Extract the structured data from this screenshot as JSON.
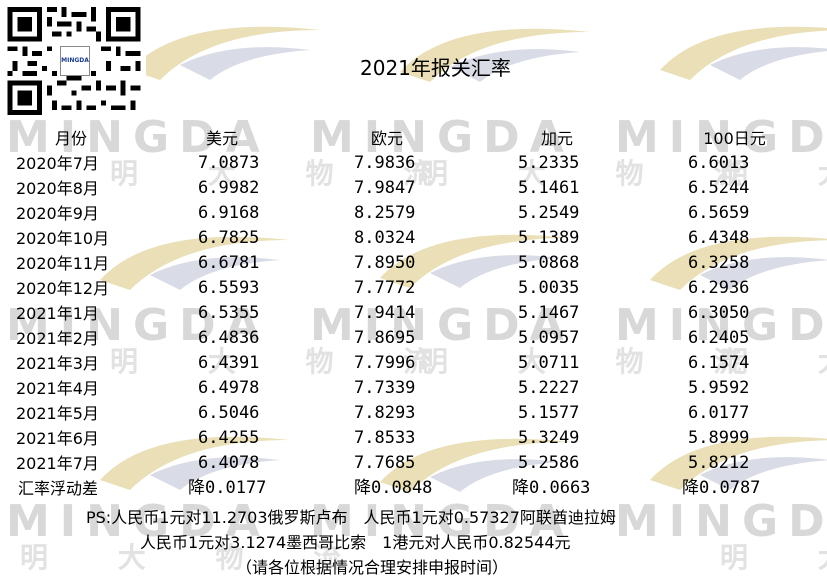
{
  "title": "2021年报关汇率",
  "watermark": {
    "word": "MINGDA",
    "cn": "明 大 物 流",
    "logo_color": "#e8d9a6"
  },
  "qr": {
    "badge_text": "MINGDA"
  },
  "table": {
    "headers": [
      "月份",
      "美元",
      "欧元",
      "加元",
      "100日元"
    ],
    "rows": [
      [
        "2020年7月",
        "7.0873",
        "7.9836",
        "5.2335",
        "6.6013"
      ],
      [
        "2020年8月",
        "6.9982",
        "7.9847",
        "5.1461",
        "6.5244"
      ],
      [
        "2020年9月",
        "6.9168",
        "8.2579",
        "5.2549",
        "6.5659"
      ],
      [
        "2020年10月",
        "6.7825",
        "8.0324",
        "5.1389",
        "6.4348"
      ],
      [
        "2020年11月",
        "6.6781",
        "7.8950",
        "5.0868",
        "6.3258"
      ],
      [
        "2020年12月",
        "6.5593",
        "7.7772",
        "5.0035",
        "6.2936"
      ],
      [
        "2021年1月",
        "6.5355",
        "7.9414",
        "5.1467",
        "6.3050"
      ],
      [
        "2021年2月",
        "6.4836",
        "7.8695",
        "5.0957",
        "6.2405"
      ],
      [
        "2021年3月",
        "6.4391",
        "7.7996",
        "5.0711",
        "6.1574"
      ],
      [
        "2021年4月",
        "6.4978",
        "7.7339",
        "5.2227",
        "5.9592"
      ],
      [
        "2021年5月",
        "6.5046",
        "7.8293",
        "5.1577",
        "6.0177"
      ],
      [
        "2021年6月",
        "6.4255",
        "7.8533",
        "5.3249",
        "5.8999"
      ],
      [
        "2021年7月",
        "6.4078",
        "7.7685",
        "5.2586",
        "5.8212"
      ]
    ],
    "diff": [
      "汇率浮动差",
      "降0.0177",
      "降0.0848",
      "降0.0663",
      "降0.0787"
    ]
  },
  "notes": {
    "line1": "PS:人民币1元对11.2703俄罗斯卢布　人民币1元对0.57327阿联酋迪拉姆",
    "line2": "人民币1元对3.1274墨西哥比索　1港元对人民币0.82544元",
    "line3": "（请各位根据情况合理安排申报时间）"
  }
}
